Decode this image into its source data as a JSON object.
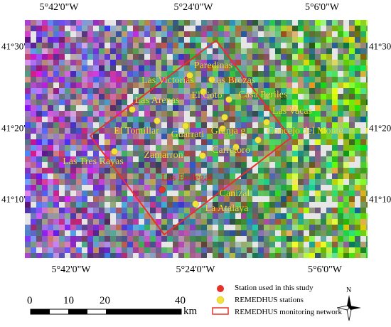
{
  "map": {
    "top_ticks": [
      "5°42'0\"W",
      "5°24'0\"W",
      "5°6'0\"W"
    ],
    "bottom_ticks": [
      "5°42'0\"W",
      "5°24'0\"W",
      "5°6'0\"W"
    ],
    "left_ticks": [
      "41°30'0\"N",
      "41°20'0\"N",
      "41°10'0\"N"
    ],
    "right_ticks": [
      "41°30'0\"N",
      "41°20'0\"N",
      "41°10'0\"N"
    ],
    "stations": [
      {
        "name": "Paredinas",
        "type": "remedhus"
      },
      {
        "name": "Las Victorias",
        "type": "remedhus"
      },
      {
        "name": "Las Brozas",
        "type": "remedhus"
      },
      {
        "name": "El Coto",
        "type": "remedhus"
      },
      {
        "name": "Casa Periles",
        "type": "remedhus"
      },
      {
        "name": "Las Arenas",
        "type": "remedhus"
      },
      {
        "name": "Las Vacas",
        "type": "remedhus"
      },
      {
        "name": "El Tomillar",
        "type": "remedhus"
      },
      {
        "name": "Guarrati",
        "type": "remedhus"
      },
      {
        "name": "Granja g",
        "type": "remedhus"
      },
      {
        "name": "Concejo del Monte",
        "type": "remedhus"
      },
      {
        "name": "Carretoro",
        "type": "remedhus"
      },
      {
        "name": "Zamarron",
        "type": "remedhus"
      },
      {
        "name": "Las Tres Rayas",
        "type": "remedhus"
      },
      {
        "name": "Las Bodegas",
        "type": "used"
      },
      {
        "name": "Canizal",
        "type": "remedhus"
      },
      {
        "name": "La Atalaya",
        "type": "remedhus"
      }
    ],
    "colors": {
      "used_station": "#e8312a",
      "remedhus_station": "#f2e23a",
      "network_outline": "#e8312a"
    }
  },
  "scale_bar": {
    "labels": [
      "0",
      "10",
      "20",
      "40"
    ],
    "unit": "km"
  },
  "north_arrow": {
    "label": "N"
  },
  "legend": {
    "items": [
      {
        "label": "Station used in this study",
        "symbol": "red-dot"
      },
      {
        "label": "REMEDHUS stations",
        "symbol": "yellow-dot"
      },
      {
        "label": "REMEDHUS monitoring network",
        "symbol": "red-rectangle"
      }
    ]
  }
}
